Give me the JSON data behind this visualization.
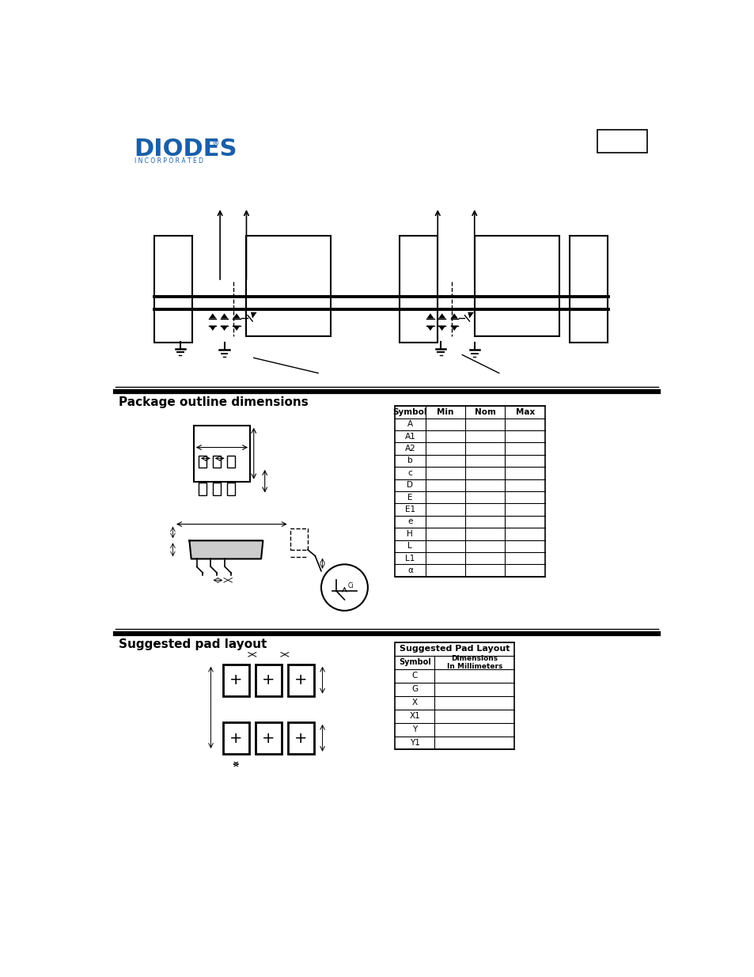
{
  "page_bg": "#ffffff",
  "diodes_logo_color": "#1a5fa8",
  "section1_title": "Package outline dimensions",
  "section2_title": "Suggested pad layout",
  "table1_headers": [
    "Symbol",
    "Min",
    "Nom",
    "Max"
  ],
  "table1_rows": [
    [
      "A",
      "",
      "",
      ""
    ],
    [
      "A1",
      "",
      "",
      ""
    ],
    [
      "A2",
      "",
      "",
      ""
    ],
    [
      "b",
      "",
      "",
      ""
    ],
    [
      "c",
      "",
      "",
      ""
    ],
    [
      "D",
      "",
      "",
      ""
    ],
    [
      "E",
      "",
      "",
      ""
    ],
    [
      "E1",
      "",
      "",
      ""
    ],
    [
      "e",
      "",
      "",
      ""
    ],
    [
      "H",
      "",
      "",
      ""
    ],
    [
      "L",
      "",
      "",
      ""
    ],
    [
      "L1",
      "",
      "",
      ""
    ],
    [
      "α",
      "",
      "",
      ""
    ]
  ],
  "table2_rows": [
    [
      "C",
      ""
    ],
    [
      "G",
      ""
    ],
    [
      "X",
      ""
    ],
    [
      "X1",
      ""
    ],
    [
      "Y",
      ""
    ],
    [
      "Y1",
      ""
    ]
  ],
  "line_color": "#000000"
}
